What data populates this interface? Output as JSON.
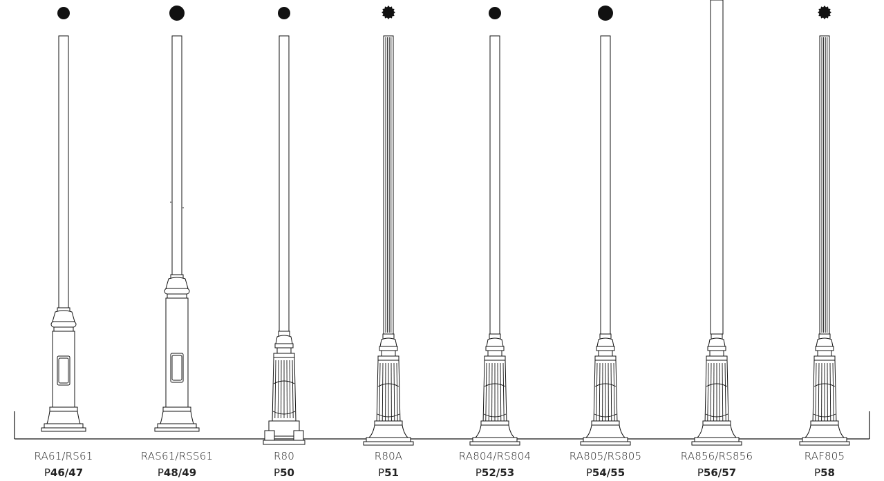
{
  "catalog": {
    "poles": [
      {
        "name": "RA61/RS61",
        "page_prefix": "P",
        "page_number": "46/47",
        "section": "round",
        "style": "smooth-tall-base"
      },
      {
        "name": "RAS61/RSS61",
        "page_prefix": "P",
        "page_number": "48/49",
        "section": "round",
        "style": "smooth-tall-base"
      },
      {
        "name": "R80",
        "page_prefix": "P",
        "page_number": "50",
        "section": "round",
        "style": "smooth-fluted-base-footed"
      },
      {
        "name": "R80A",
        "page_prefix": "P",
        "page_number": "51",
        "section": "fluted",
        "style": "fluted-shaft"
      },
      {
        "name": "RA804/RS804",
        "page_prefix": "P",
        "page_number": "52/53",
        "section": "round",
        "style": "smooth-shaft"
      },
      {
        "name": "RA805/RS805",
        "page_prefix": "P",
        "page_number": "54/55",
        "section": "round",
        "style": "smooth-shaft"
      },
      {
        "name": "RA856/RS856",
        "page_prefix": "P",
        "page_number": "56/57",
        "section": "round",
        "style": "smooth-shaft-tall"
      },
      {
        "name": "RAF805",
        "page_prefix": "P",
        "page_number": "58",
        "section": "fluted",
        "style": "fluted-shaft"
      }
    ]
  }
}
